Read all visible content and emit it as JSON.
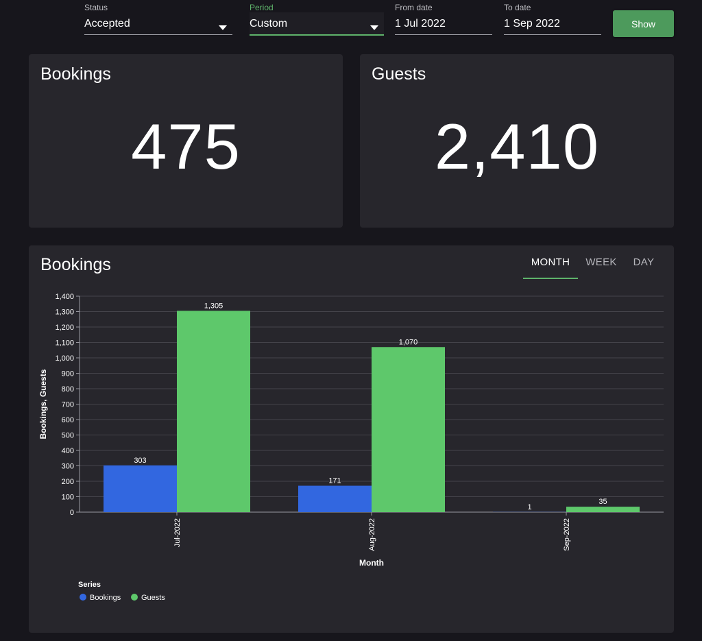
{
  "filters": {
    "status": {
      "label": "Status",
      "value": "Accepted"
    },
    "period": {
      "label": "Period",
      "value": "Custom"
    },
    "from_date": {
      "label": "From date",
      "value": "1 Jul 2022"
    },
    "to_date": {
      "label": "To date",
      "value": "1 Sep 2022"
    },
    "show_button": "Show"
  },
  "cards": {
    "bookings": {
      "title": "Bookings",
      "value": "475"
    },
    "guests": {
      "title": "Guests",
      "value": "2,410"
    }
  },
  "chart_panel": {
    "title": "Bookings",
    "tabs": [
      "MONTH",
      "WEEK",
      "DAY"
    ],
    "active_tab": "MONTH"
  },
  "colors": {
    "bookings": "#3267e0",
    "guests": "#5ec86b",
    "accent": "#5fb36b",
    "button": "#4d9a5c"
  },
  "chart_data": {
    "type": "bar",
    "categories": [
      "Jul-2022",
      "Aug-2022",
      "Sep-2022"
    ],
    "series": [
      {
        "name": "Bookings",
        "values": [
          303,
          171,
          1
        ]
      },
      {
        "name": "Guests",
        "values": [
          1305,
          1070,
          35
        ]
      }
    ],
    "data_labels": {
      "Bookings": [
        "303",
        "171",
        "1"
      ],
      "Guests": [
        "1,305",
        "1,070",
        "35"
      ]
    },
    "xlabel": "Month",
    "ylabel": "Bookings, Guests",
    "ylim": [
      0,
      1400
    ],
    "yticks": [
      0,
      100,
      200,
      300,
      400,
      500,
      600,
      700,
      800,
      900,
      1000,
      1100,
      1200,
      1300,
      1400
    ],
    "ytick_labels": [
      "0",
      "100",
      "200",
      "300",
      "400",
      "500",
      "600",
      "700",
      "800",
      "900",
      "1,000",
      "1,100",
      "1,200",
      "1,300",
      "1,400"
    ],
    "grid": true,
    "legend_title": "Series",
    "legend_position": "bottom-left"
  }
}
